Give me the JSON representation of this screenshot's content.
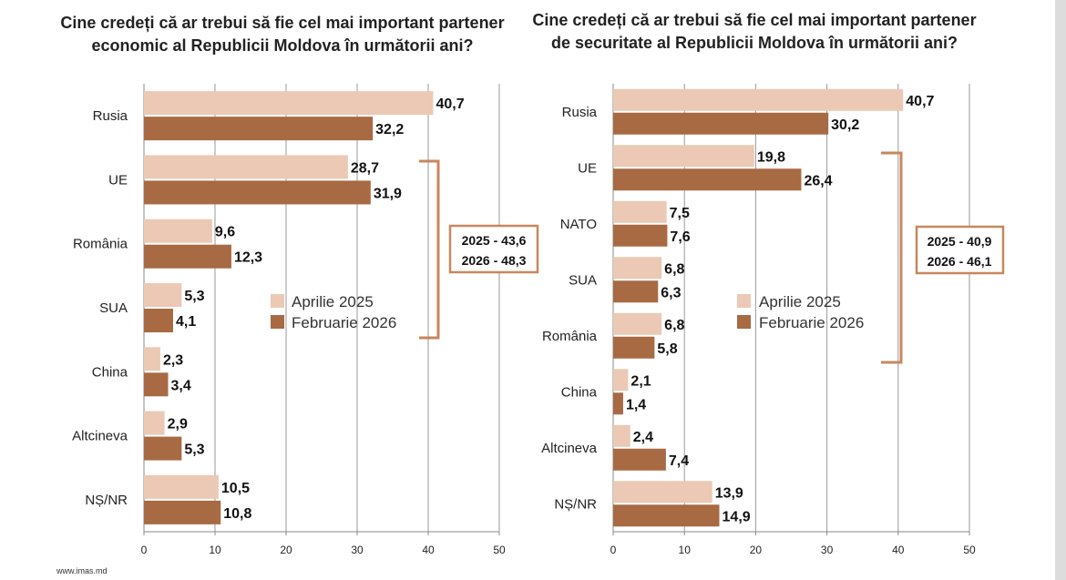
{
  "source": "www.imas.md",
  "colors": {
    "series_a": "#ecc9b4",
    "series_b": "#a86a43",
    "bracket": "#c8875d",
    "grid": "#999999"
  },
  "chart_data": [
    {
      "type": "bar",
      "orientation": "horizontal",
      "title_lines": [
        "Cine credeți că ar trebui să fie cel mai important partener",
        "economic al Republicii Moldova în următorii ani?"
      ],
      "categories": [
        "Rusia",
        "UE",
        "România",
        "SUA",
        "China",
        "Altcineva",
        "NȘ/NR"
      ],
      "series": [
        {
          "name": "Aprilie 2025",
          "values": [
            40.7,
            28.7,
            9.6,
            5.3,
            2.3,
            2.9,
            10.5
          ],
          "labels": [
            "40,7",
            "28,7",
            "9,6",
            "5,3",
            "2,3",
            "2,9",
            "10,5"
          ]
        },
        {
          "name": "Februarie 2026",
          "values": [
            32.2,
            31.9,
            12.3,
            4.1,
            3.4,
            5.3,
            10.8
          ],
          "labels": [
            "32,2",
            "31,9",
            "12,3",
            "4,1",
            "3,4",
            "5,3",
            "10,8"
          ]
        }
      ],
      "xlim": [
        0,
        50
      ],
      "xticks": [
        "0",
        "10",
        "20",
        "30",
        "40",
        "50"
      ],
      "grid": true,
      "legend_position": "center-right",
      "annotation": {
        "spans": [
          "UE",
          "SUA"
        ],
        "lines": [
          "2025 - 43,6",
          "2026 - 48,3"
        ]
      }
    },
    {
      "type": "bar",
      "orientation": "horizontal",
      "title_lines": [
        "Cine credeți că ar trebui să fie cel mai important partener",
        "de securitate al Republicii Moldova în următorii ani?"
      ],
      "categories": [
        "Rusia",
        "UE",
        "NATO",
        "SUA",
        "România",
        "China",
        "Altcineva",
        "NȘ/NR"
      ],
      "series": [
        {
          "name": "Aprilie 2025",
          "values": [
            40.7,
            19.8,
            7.5,
            6.8,
            6.8,
            2.1,
            2.4,
            13.9
          ],
          "labels": [
            "40,7",
            "19,8",
            "7,5",
            "6,8",
            "6,8",
            "2,1",
            "2,4",
            "13,9"
          ]
        },
        {
          "name": "Februarie 2026",
          "values": [
            30.2,
            26.4,
            7.6,
            6.3,
            5.8,
            1.4,
            7.4,
            14.9
          ],
          "labels": [
            "30,2",
            "26,4",
            "7,6",
            "6,3",
            "5,8",
            "1,4",
            "7,4",
            "14,9"
          ]
        }
      ],
      "xlim": [
        0,
        50
      ],
      "xticks": [
        "0",
        "10",
        "20",
        "30",
        "40",
        "50"
      ],
      "grid": true,
      "legend_position": "center-right",
      "annotation": {
        "spans": [
          "UE",
          "România"
        ],
        "lines": [
          "2025 - 40,9",
          "2026 - 46,1"
        ]
      }
    }
  ]
}
